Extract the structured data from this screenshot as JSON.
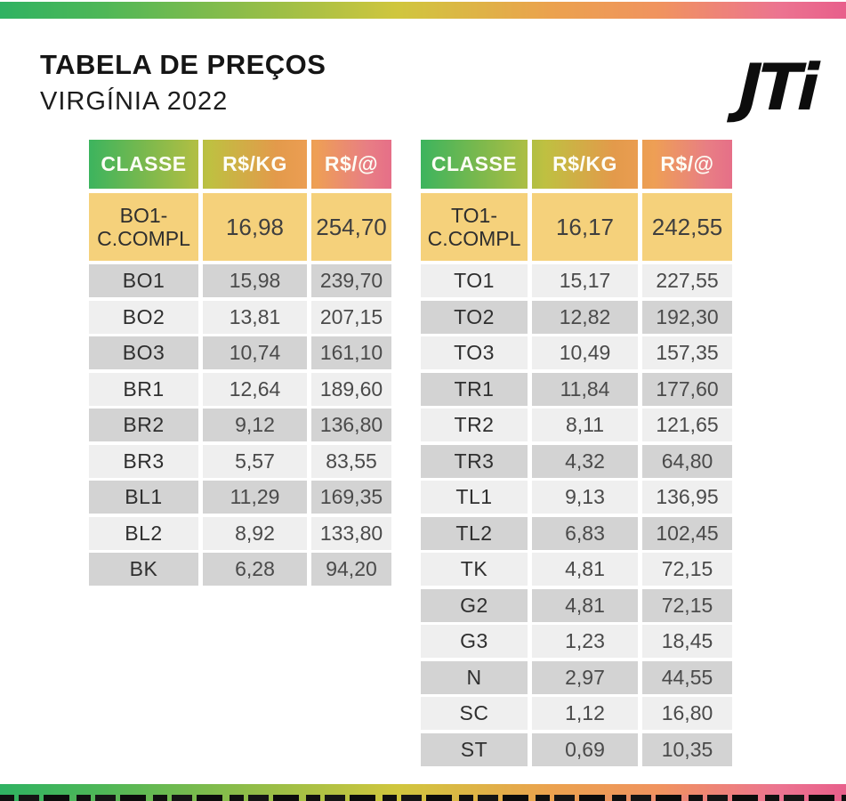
{
  "page": {
    "title": "TABELA DE PREÇOS",
    "subtitle": "VIRGÍNIA 2022",
    "logo_text": "JTi"
  },
  "columns": [
    "CLASSE",
    "R$/KG",
    "R$/@"
  ],
  "tables": [
    {
      "id": "virginia-b-grades",
      "highlight": [
        "BO1-\nC.COMPL",
        "16,98",
        "254,70"
      ],
      "first_row_shade": "dark",
      "rows": [
        [
          "BO1",
          "15,98",
          "239,70"
        ],
        [
          "BO2",
          "13,81",
          "207,15"
        ],
        [
          "BO3",
          "10,74",
          "161,10"
        ],
        [
          "BR1",
          "12,64",
          "189,60"
        ],
        [
          "BR2",
          "9,12",
          "136,80"
        ],
        [
          "BR3",
          "5,57",
          "83,55"
        ],
        [
          "BL1",
          "11,29",
          "169,35"
        ],
        [
          "BL2",
          "8,92",
          "133,80"
        ],
        [
          "BK",
          "6,28",
          "94,20"
        ]
      ]
    },
    {
      "id": "virginia-t-grades",
      "highlight": [
        "TO1-\nC.COMPL",
        "16,17",
        "242,55"
      ],
      "first_row_shade": "light",
      "rows": [
        [
          "TO1",
          "15,17",
          "227,55"
        ],
        [
          "TO2",
          "12,82",
          "192,30"
        ],
        [
          "TO3",
          "10,49",
          "157,35"
        ],
        [
          "TR1",
          "11,84",
          "177,60"
        ],
        [
          "TR2",
          "8,11",
          "121,65"
        ],
        [
          "TR3",
          "4,32",
          "64,80"
        ],
        [
          "TL1",
          "9,13",
          "136,95"
        ],
        [
          "TL2",
          "6,83",
          "102,45"
        ],
        [
          "TK",
          "4,81",
          "72,15"
        ],
        [
          "G2",
          "4,81",
          "72,15"
        ],
        [
          "G3",
          "1,23",
          "18,45"
        ],
        [
          "N",
          "2,97",
          "44,55"
        ],
        [
          "SC",
          "1,12",
          "16,80"
        ],
        [
          "ST",
          "0,69",
          "10,35"
        ]
      ]
    }
  ],
  "colors": {
    "highlight_row": "#f5d17b",
    "row_dark": "#d3d3d3",
    "row_light": "#efefef",
    "gradient_green": "#2fb262",
    "gradient_yellow": "#d0c63e",
    "gradient_orange": "#eba24e",
    "gradient_pink": "#e85f8b",
    "header_text": "#fdfdf5",
    "title_text": "#151515"
  }
}
